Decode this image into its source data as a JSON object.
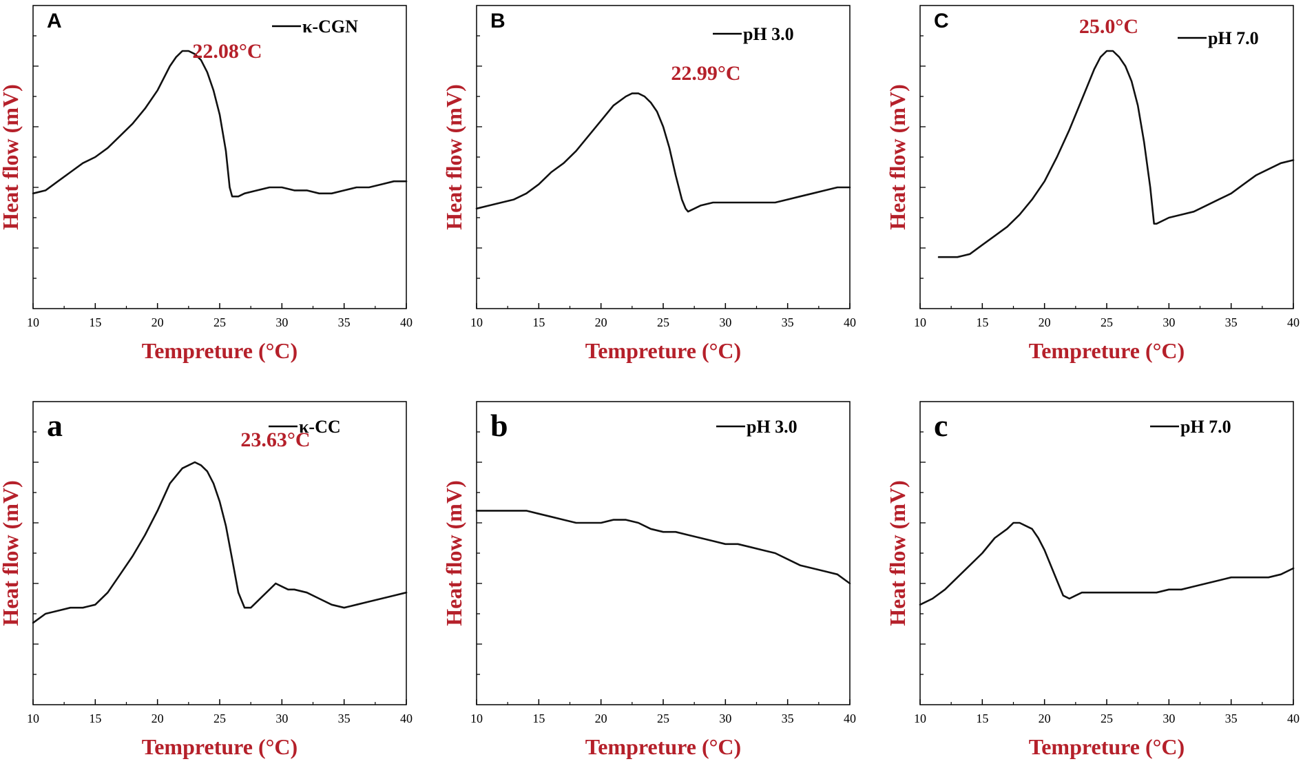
{
  "chart_data": [
    {
      "type": "line",
      "panel_label": "A",
      "legend": "κ-CGN",
      "peak_annotation": "22.08°C",
      "xlabel": "Tempreture (°C)",
      "ylabel": "Heat flow (mV)",
      "xlim": [
        10,
        40
      ],
      "ylim": [
        0,
        1
      ],
      "x_ticks": [
        "10",
        "15",
        "20",
        "25",
        "30",
        "35",
        "40"
      ],
      "series": [
        {
          "name": "κ-CGN",
          "x": [
            10,
            11,
            12,
            13,
            14,
            15,
            16,
            17,
            18,
            19,
            20,
            21,
            21.5,
            22,
            22.5,
            23,
            23.5,
            24,
            24.5,
            25,
            25.5,
            25.8,
            26,
            26.5,
            27,
            28,
            29,
            30,
            31,
            32,
            33,
            34,
            35,
            36,
            37,
            38,
            39,
            40
          ],
          "y": [
            0.38,
            0.39,
            0.42,
            0.45,
            0.48,
            0.5,
            0.53,
            0.57,
            0.61,
            0.66,
            0.72,
            0.8,
            0.83,
            0.85,
            0.85,
            0.84,
            0.82,
            0.78,
            0.72,
            0.64,
            0.52,
            0.4,
            0.37,
            0.37,
            0.38,
            0.39,
            0.4,
            0.4,
            0.39,
            0.39,
            0.38,
            0.38,
            0.39,
            0.4,
            0.4,
            0.41,
            0.42,
            0.42
          ]
        }
      ]
    },
    {
      "type": "line",
      "panel_label": "B",
      "legend": "pH 3.0",
      "peak_annotation": "22.99°C",
      "xlabel": "Tempreture (°C)",
      "ylabel": "Heat flow (mV)",
      "xlim": [
        10,
        40
      ],
      "ylim": [
        0,
        1
      ],
      "x_ticks": [
        "10",
        "15",
        "20",
        "25",
        "30",
        "35",
        "40"
      ],
      "series": [
        {
          "name": "pH 3.0",
          "x": [
            10,
            11,
            12,
            13,
            14,
            15,
            16,
            17,
            18,
            19,
            20,
            21,
            22,
            22.5,
            23,
            23.5,
            24,
            24.5,
            25,
            25.5,
            26,
            26.5,
            26.8,
            27,
            27.5,
            28,
            29,
            30,
            31,
            32,
            33,
            34,
            35,
            36,
            37,
            38,
            39,
            40
          ],
          "y": [
            0.33,
            0.34,
            0.35,
            0.36,
            0.38,
            0.41,
            0.45,
            0.48,
            0.52,
            0.57,
            0.62,
            0.67,
            0.7,
            0.71,
            0.71,
            0.7,
            0.68,
            0.65,
            0.6,
            0.53,
            0.44,
            0.36,
            0.33,
            0.32,
            0.33,
            0.34,
            0.35,
            0.35,
            0.35,
            0.35,
            0.35,
            0.35,
            0.36,
            0.37,
            0.38,
            0.39,
            0.4,
            0.4
          ]
        }
      ]
    },
    {
      "type": "line",
      "panel_label": "C",
      "legend": "pH 7.0",
      "peak_annotation": "25.0°C",
      "xlabel": "Tempreture (°C)",
      "ylabel": "Heat flow (mV)",
      "xlim": [
        10,
        40
      ],
      "ylim": [
        0,
        1
      ],
      "x_ticks": [
        "10",
        "15",
        "20",
        "25",
        "30",
        "35",
        "40"
      ],
      "series": [
        {
          "name": "pH 7.0",
          "x": [
            11.5,
            12,
            13,
            14,
            15,
            16,
            17,
            18,
            19,
            20,
            21,
            22,
            23,
            24,
            24.5,
            25,
            25.5,
            26,
            26.5,
            27,
            27.5,
            28,
            28.5,
            28.8,
            29,
            30,
            31,
            32,
            33,
            34,
            35,
            36,
            37,
            38,
            39,
            40
          ],
          "y": [
            0.17,
            0.17,
            0.17,
            0.18,
            0.21,
            0.24,
            0.27,
            0.31,
            0.36,
            0.42,
            0.5,
            0.59,
            0.69,
            0.79,
            0.83,
            0.85,
            0.85,
            0.83,
            0.8,
            0.75,
            0.67,
            0.55,
            0.4,
            0.28,
            0.28,
            0.3,
            0.31,
            0.32,
            0.34,
            0.36,
            0.38,
            0.41,
            0.44,
            0.46,
            0.48,
            0.49
          ]
        }
      ]
    },
    {
      "type": "line",
      "panel_label": "a",
      "legend": "κ-CC",
      "peak_annotation": "23.63°C",
      "xlabel": "Tempreture (°C)",
      "ylabel": "Heat flow (mV)",
      "xlim": [
        10,
        40
      ],
      "ylim": [
        0,
        1
      ],
      "x_ticks": [
        "10",
        "15",
        "20",
        "25",
        "30",
        "35",
        "40"
      ],
      "series": [
        {
          "name": "κ-CC",
          "x": [
            10,
            11,
            12,
            13,
            14,
            15,
            16,
            17,
            18,
            19,
            20,
            21,
            22,
            22.5,
            23,
            23.5,
            24,
            24.5,
            25,
            25.5,
            26,
            26.5,
            27,
            27.5,
            28,
            29,
            29.5,
            30,
            30.5,
            31,
            32,
            33,
            34,
            35,
            36,
            37,
            38,
            39,
            40
          ],
          "y": [
            0.27,
            0.3,
            0.31,
            0.32,
            0.32,
            0.33,
            0.37,
            0.43,
            0.49,
            0.56,
            0.64,
            0.73,
            0.78,
            0.79,
            0.8,
            0.79,
            0.77,
            0.73,
            0.67,
            0.59,
            0.48,
            0.37,
            0.32,
            0.32,
            0.34,
            0.38,
            0.4,
            0.39,
            0.38,
            0.38,
            0.37,
            0.35,
            0.33,
            0.32,
            0.33,
            0.34,
            0.35,
            0.36,
            0.37
          ]
        }
      ]
    },
    {
      "type": "line",
      "panel_label": "b",
      "legend": "pH 3.0",
      "peak_annotation": "",
      "xlabel": "Tempreture (°C)",
      "ylabel": "Heat flow (mV)",
      "xlim": [
        10,
        40
      ],
      "ylim": [
        0,
        1
      ],
      "x_ticks": [
        "10",
        "15",
        "20",
        "25",
        "30",
        "35",
        "40"
      ],
      "series": [
        {
          "name": "pH 3.0",
          "x": [
            10,
            11,
            12,
            13,
            14,
            15,
            16,
            17,
            18,
            19,
            20,
            21,
            22,
            23,
            24,
            25,
            26,
            27,
            28,
            29,
            30,
            31,
            32,
            33,
            34,
            35,
            36,
            37,
            38,
            39,
            40
          ],
          "y": [
            0.64,
            0.64,
            0.64,
            0.64,
            0.64,
            0.63,
            0.62,
            0.61,
            0.6,
            0.6,
            0.6,
            0.61,
            0.61,
            0.6,
            0.58,
            0.57,
            0.57,
            0.56,
            0.55,
            0.54,
            0.53,
            0.53,
            0.52,
            0.51,
            0.5,
            0.48,
            0.46,
            0.45,
            0.44,
            0.43,
            0.4
          ]
        }
      ]
    },
    {
      "type": "line",
      "panel_label": "c",
      "legend": "pH 7.0",
      "peak_annotation": "",
      "xlabel": "Tempreture (°C)",
      "ylabel": "Heat flow (mV)",
      "xlim": [
        10,
        40
      ],
      "ylim": [
        0,
        1
      ],
      "x_ticks": [
        "10",
        "15",
        "20",
        "25",
        "30",
        "35",
        "40"
      ],
      "series": [
        {
          "name": "pH 7.0",
          "x": [
            10,
            11,
            12,
            13,
            14,
            15,
            16,
            17,
            17.5,
            18,
            18.5,
            19,
            19.5,
            20,
            20.5,
            21,
            21.5,
            22,
            22.5,
            23,
            24,
            25,
            26,
            27,
            28,
            29,
            30,
            31,
            32,
            33,
            34,
            35,
            36,
            37,
            38,
            39,
            40
          ],
          "y": [
            0.33,
            0.35,
            0.38,
            0.42,
            0.46,
            0.5,
            0.55,
            0.58,
            0.6,
            0.6,
            0.59,
            0.58,
            0.55,
            0.51,
            0.46,
            0.41,
            0.36,
            0.35,
            0.36,
            0.37,
            0.37,
            0.37,
            0.37,
            0.37,
            0.37,
            0.37,
            0.38,
            0.38,
            0.39,
            0.4,
            0.41,
            0.42,
            0.42,
            0.42,
            0.42,
            0.43,
            0.45
          ]
        }
      ]
    }
  ]
}
